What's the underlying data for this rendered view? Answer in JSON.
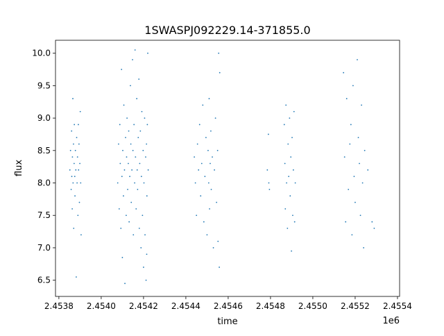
{
  "chart_data": {
    "type": "scatter",
    "title": "1SWASPJ092229.14-371855.0",
    "xlabel": "time",
    "ylabel": "flux",
    "x_offset_label": "1e6",
    "xlim": [
      2453784,
      2455410
    ],
    "ylim": [
      6.25,
      10.2
    ],
    "xticks": [
      2453800,
      2454000,
      2454200,
      2454400,
      2454600,
      2454800,
      2455000,
      2455200,
      2455400
    ],
    "xtick_labels": [
      "2.4538",
      "2.4540",
      "2.4542",
      "2.4544",
      "2.4546",
      "2.4548",
      "2.4550",
      "2.4552",
      "2.4554"
    ],
    "yticks": [
      6.5,
      7.0,
      7.5,
      8.0,
      8.5,
      9.0,
      9.5,
      10.0
    ],
    "ytick_labels": [
      "6.5",
      "7.0",
      "7.5",
      "8.0",
      "8.5",
      "9.0",
      "9.5",
      "10.0"
    ],
    "grid": false,
    "color": "#1f77b4",
    "time": [
      2453852,
      2453855,
      2453858,
      2453860,
      2453861,
      2453863,
      2453864,
      2453866,
      2453867,
      2453869,
      2453870,
      2453872,
      2453873,
      2453875,
      2453876,
      2453878,
      2453880,
      2453882,
      2453884,
      2453886,
      2453888,
      2453890,
      2453892,
      2453893,
      2453895,
      2453897,
      2453899,
      2453901,
      2453903,
      2453905,
      2454078,
      2454082,
      2454085,
      2454088,
      2454090,
      2454093,
      2454096,
      2454098,
      2454100,
      2454102,
      2454105,
      2454107,
      2454110,
      2454112,
      2454115,
      2454118,
      2454120,
      2454122,
      2454125,
      2454128,
      2454130,
      2454132,
      2454135,
      2454138,
      2454140,
      2454142,
      2454145,
      2454148,
      2454150,
      2454152,
      2454155,
      2454158,
      2454160,
      2454162,
      2454165,
      2454168,
      2454170,
      2454172,
      2454175,
      2454178,
      2454180,
      2454182,
      2454185,
      2454188,
      2454190,
      2454192,
      2454195,
      2454198,
      2454200,
      2454202,
      2454205,
      2454207,
      2454210,
      2454212,
      2454214,
      2454216,
      2454218,
      2454220,
      2454222,
      2454215,
      2454440,
      2454445,
      2454450,
      2454455,
      2454460,
      2454465,
      2454470,
      2454475,
      2454480,
      2454485,
      2454490,
      2454495,
      2454500,
      2454505,
      2454508,
      2454510,
      2454512,
      2454515,
      2454518,
      2454520,
      2454525,
      2454530,
      2454535,
      2454540,
      2454545,
      2454550,
      2454555,
      2454560,
      2454558,
      2454552,
      2454785,
      2454790,
      2454792,
      2454795,
      2454865,
      2454868,
      2454870,
      2454873,
      2454876,
      2454880,
      2454883,
      2454886,
      2454890,
      2454893,
      2454896,
      2454899,
      2454902,
      2454905,
      2454908,
      2454911,
      2454914,
      2454917,
      2455145,
      2455150,
      2455155,
      2455160,
      2455168,
      2455175,
      2455180,
      2455185,
      2455190,
      2455195,
      2455200,
      2455210,
      2455215,
      2455220,
      2455225,
      2455230,
      2455235,
      2455240,
      2455245,
      2455260,
      2455280,
      2455290
    ],
    "flux": [
      8.2,
      8.5,
      7.9,
      8.8,
      8.1,
      7.6,
      8.4,
      9.3,
      8.0,
      8.6,
      7.3,
      8.3,
      8.9,
      8.1,
      7.8,
      8.5,
      8.2,
      6.55,
      8.7,
      8.0,
      8.4,
      7.5,
      8.9,
      8.2,
      8.6,
      7.7,
      8.3,
      9.1,
      8.0,
      7.2,
      8.0,
      8.6,
      7.6,
      8.9,
      8.3,
      7.3,
      9.75,
      8.1,
      6.85,
      8.5,
      7.8,
      9.2,
      8.2,
      6.45,
      8.7,
      7.5,
      8.4,
      9.0,
      7.9,
      8.3,
      8.8,
      7.4,
      8.1,
      9.5,
      8.6,
      7.7,
      8.2,
      9.9,
      8.5,
      7.2,
      8.9,
      8.0,
      10.05,
      8.4,
      7.6,
      9.3,
      8.2,
      7.9,
      8.7,
      9.6,
      7.3,
      8.3,
      8.8,
      7.0,
      8.1,
      9.1,
      7.5,
      8.5,
      6.7,
      8.0,
      9.0,
      7.2,
      8.4,
      6.5,
      8.6,
      7.8,
      8.9,
      10.0,
      8.2,
      6.9,
      8.4,
      8.0,
      7.5,
      8.6,
      8.2,
      8.9,
      7.8,
      8.3,
      9.2,
      7.4,
      8.1,
      8.7,
      7.2,
      8.5,
      8.0,
      9.3,
      7.6,
      8.3,
      8.8,
      7.9,
      8.4,
      7.0,
      8.2,
      9.0,
      7.7,
      8.5,
      10.0,
      9.7,
      6.7,
      7.1,
      8.2,
      8.75,
      8.0,
      7.9,
      8.9,
      8.3,
      7.6,
      9.2,
      8.0,
      7.3,
      8.6,
      8.1,
      9.0,
      7.8,
      8.4,
      6.95,
      8.7,
      7.5,
      8.2,
      9.1,
      7.4,
      8.0,
      9.7,
      8.4,
      7.4,
      9.3,
      7.9,
      8.6,
      8.9,
      7.2,
      9.5,
      8.1,
      7.7,
      9.9,
      8.7,
      8.3,
      7.5,
      9.2,
      8.0,
      7.0,
      8.5,
      8.2,
      7.4,
      7.3
    ]
  }
}
